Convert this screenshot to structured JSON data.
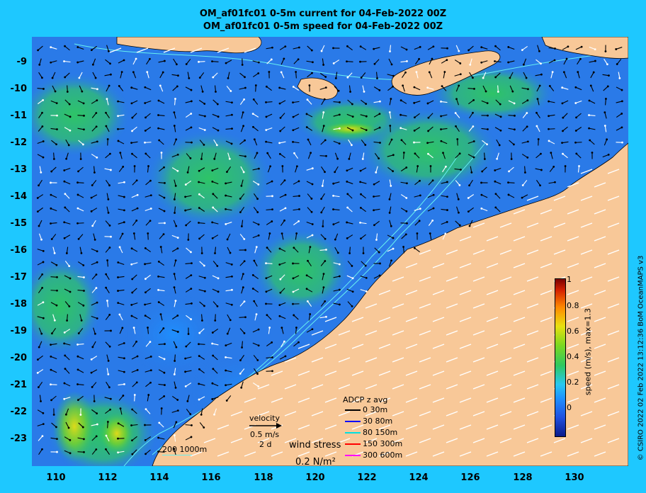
{
  "title": {
    "line1": "OM_af01fc01 0-5m current for 04-Feb-2022 00Z",
    "line2": "OM_af01fc01 0-5m speed for 04-Feb-2022 00Z"
  },
  "y_ticks": [
    "-9",
    "-10",
    "-11",
    "-12",
    "-13",
    "-14",
    "-15",
    "-16",
    "-17",
    "-18",
    "-19",
    "-20",
    "-21",
    "-22",
    "-23"
  ],
  "x_ticks": [
    "110",
    "112",
    "114",
    "116",
    "118",
    "120",
    "122",
    "124",
    "126",
    "128",
    "130"
  ],
  "colorbar": {
    "label": "speed (m/s), max=1.3",
    "ticks": [
      "1",
      "0.8",
      "0.6",
      "0.4",
      "0.2",
      "0"
    ]
  },
  "credit": "© CSIRO 2022  02 Feb 2022 13:12:36 BoM OceanMAPS v3",
  "velocity_legend": {
    "title": "velocity",
    "speed": "0.5 m/s",
    "duration": "2 d"
  },
  "depth_scale": "200  1000m",
  "wind_stress": {
    "title": "wind stress",
    "value": "0.2 N/m²"
  },
  "adcp_legend": {
    "title": "ADCP z avg",
    "rows": [
      {
        "label": "0 30m",
        "color": "#000000"
      },
      {
        "label": "30 80m",
        "color": "#0000ff"
      },
      {
        "label": "80 150m",
        "color": "#00e0e0"
      },
      {
        "label": "150 300m",
        "color": "#ff0000"
      },
      {
        "label": "300 600m",
        "color": "#ff00ff"
      }
    ]
  },
  "colors": {
    "background": "#1ec8ff",
    "land": "#f8c898",
    "ocean_base": "#2a7ae8"
  }
}
